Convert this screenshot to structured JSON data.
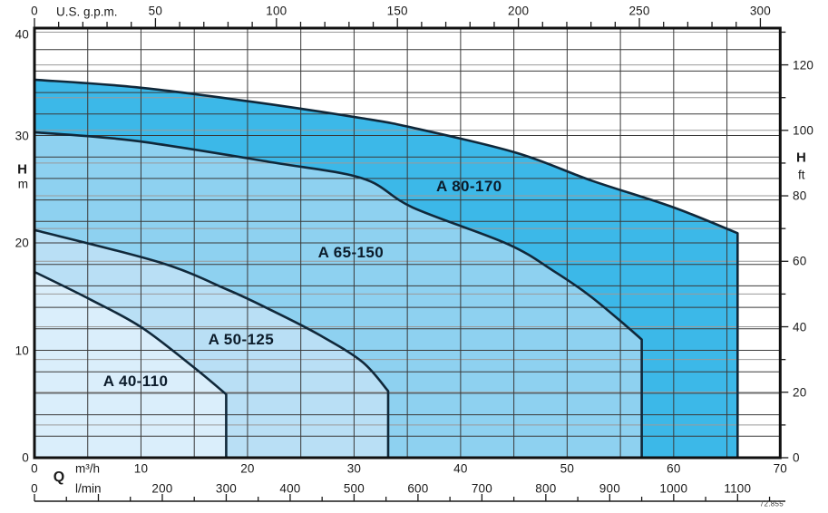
{
  "figure": {
    "code": "72.855"
  },
  "chart_data": {
    "type": "area",
    "title": "",
    "description": "Pump performance envelope chart: head H versus flow rate Q for four pump models",
    "qlim_m3h": [
      0,
      70
    ],
    "hlim_m": [
      0,
      40
    ],
    "grid": {
      "grid_on": true,
      "q_step_m3h": 5,
      "h_step_m": 2,
      "ft_step": 10,
      "ft_minor_max": 130
    },
    "axes": {
      "top": {
        "title": "U.S. g.p.m.",
        "major_ticks": [
          0,
          50,
          100,
          150,
          200,
          250,
          300
        ],
        "minor_step": 10,
        "minor_max": 300,
        "gpm_per_m3h": 4.402863
      },
      "left": {
        "title": "H",
        "unit": "m",
        "ticks": [
          0,
          10,
          20,
          30,
          40
        ]
      },
      "right": {
        "title": "H",
        "unit": "ft",
        "ticks": [
          0,
          20,
          40,
          60,
          80,
          100,
          120
        ],
        "minor_step": 10,
        "minor_max": 130,
        "ft_per_m": 3.28084
      },
      "bottom_m3h": {
        "title": "Q",
        "unit": "m³/h",
        "ticks": [
          0,
          10,
          20,
          30,
          40,
          50,
          60,
          70
        ]
      },
      "bottom_lmin": {
        "unit": "l/min",
        "ticks": [
          0,
          200,
          300,
          400,
          500,
          600,
          700,
          800,
          900,
          1000,
          1100
        ],
        "ruler_minor_step": 50,
        "ruler_max": 1150,
        "lmin_per_m3h": 16.6667
      }
    },
    "series": [
      {
        "name": "A 80-170",
        "fill": "#3cb8e8",
        "label_q": 40.8,
        "label_h": 25.2,
        "q_end": 66,
        "h_end": 20.9,
        "points_q_h": [
          [
            0,
            35.2
          ],
          [
            9.5,
            34.5
          ],
          [
            20,
            33.2
          ],
          [
            30.8,
            31.6
          ],
          [
            35.6,
            30.7
          ],
          [
            45.2,
            28.4
          ],
          [
            52.3,
            25.8
          ],
          [
            60,
            23.3
          ],
          [
            66,
            20.9
          ]
        ]
      },
      {
        "name": "A 65-150",
        "fill": "#8ed1f0",
        "label_q": 29.7,
        "label_h": 19.1,
        "q_end": 57,
        "h_end": 11.0,
        "points_q_h": [
          [
            0,
            30.3
          ],
          [
            9.5,
            29.5
          ],
          [
            22.3,
            27.5
          ],
          [
            30.8,
            26.0
          ],
          [
            35.5,
            23.3
          ],
          [
            44.4,
            19.9
          ],
          [
            48.7,
            17.4
          ],
          [
            52.1,
            15.1
          ],
          [
            55.5,
            12.3
          ],
          [
            57,
            11.0
          ]
        ]
      },
      {
        "name": "A 50-125",
        "fill": "#b9dff5",
        "label_q": 19.4,
        "label_h": 11.0,
        "q_end": 33.2,
        "h_end": 6.2,
        "points_q_h": [
          [
            0,
            21.2
          ],
          [
            11.7,
            18.2
          ],
          [
            18,
            15.7
          ],
          [
            22.3,
            13.7
          ],
          [
            26.8,
            11.4
          ],
          [
            30.8,
            8.9
          ],
          [
            33.2,
            6.2
          ]
        ]
      },
      {
        "name": "A 40-110",
        "fill": "#daeefb",
        "label_q": 9.5,
        "label_h": 7.1,
        "q_end": 18,
        "h_end": 5.9,
        "points_q_h": [
          [
            0,
            17.3
          ],
          [
            5.3,
            14.7
          ],
          [
            10.1,
            12.1
          ],
          [
            15.1,
            8.3
          ],
          [
            18,
            5.9
          ]
        ]
      }
    ],
    "styles": {
      "curve_color": "#10283a",
      "grid_black": "#3a3a3a",
      "grid_gray": "#9a9a9a",
      "border_color": "#101010",
      "tick_color": "#1a1a1a",
      "region_label_color": "#0c1c2b",
      "background": "#ffffff"
    },
    "legend_position": "labels-inside-areas"
  }
}
